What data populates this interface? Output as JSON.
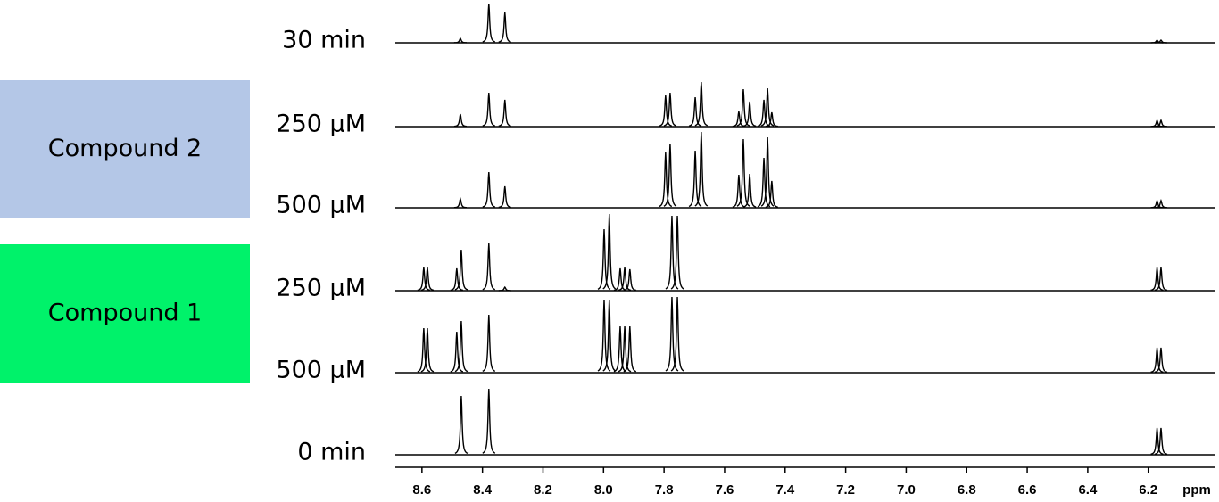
{
  "chart_data": {
    "type": "nmr-stack",
    "xlabel": "ppm",
    "xlim": [
      8.688,
      5.978
    ],
    "xticks": [
      8.6,
      8.4,
      8.2,
      {
        "value": 8,
        "label": "8.0"
      },
      7.8,
      7.6,
      7.4,
      7.2,
      {
        "value": 7,
        "label": "7.0"
      },
      6.8,
      6.6,
      6.4,
      6.2
    ],
    "groups": [
      {
        "label": "Compound 2",
        "color": "#b4c7e7"
      },
      {
        "label": "Compound 1",
        "color": "#00f26a"
      }
    ],
    "series": [
      {
        "name": "30 min",
        "color": "#000000",
        "x": [
          8.473,
          8.379,
          8.326,
          6.171,
          6.158
        ],
        "values": [
          5,
          44,
          34,
          3,
          3
        ]
      },
      {
        "name": "250 μM",
        "color": "#000000",
        "x": [
          8.473,
          8.379,
          8.326,
          7.795,
          7.78,
          7.697,
          7.677,
          7.553,
          7.538,
          7.517,
          7.47,
          7.458,
          7.444,
          6.171,
          6.158
        ],
        "values": [
          14,
          38,
          30,
          35,
          38,
          33,
          50,
          17,
          42,
          28,
          30,
          43,
          16,
          7,
          7
        ]
      },
      {
        "name": "500 μM",
        "color": "#000000",
        "x": [
          8.473,
          8.379,
          8.326,
          7.795,
          7.78,
          7.697,
          7.677,
          7.553,
          7.538,
          7.517,
          7.47,
          7.458,
          7.444,
          6.171,
          6.158
        ],
        "values": [
          10,
          40,
          24,
          62,
          72,
          64,
          85,
          37,
          77,
          38,
          56,
          79,
          30,
          8,
          8
        ]
      },
      {
        "name": "250 μM",
        "color": "#000000",
        "x": [
          8.594,
          8.582,
          8.485,
          8.47,
          8.379,
          8.326,
          7.998,
          7.981,
          7.945,
          7.93,
          7.913,
          7.774,
          7.756,
          6.171,
          6.158
        ],
        "values": [
          26,
          26,
          25,
          46,
          53,
          4,
          69,
          86,
          25,
          26,
          24,
          84,
          84,
          26,
          26
        ]
      },
      {
        "name": "500 μM",
        "color": "#000000",
        "x": [
          8.594,
          8.582,
          8.485,
          8.47,
          8.379,
          7.998,
          7.981,
          7.945,
          7.93,
          7.913,
          7.774,
          7.756,
          6.171,
          6.158
        ],
        "values": [
          50,
          50,
          46,
          58,
          65,
          82,
          82,
          52,
          52,
          52,
          85,
          85,
          28,
          28
        ]
      },
      {
        "name": "0 min",
        "color": "#000000",
        "x": [
          8.47,
          8.379,
          6.171,
          6.158
        ],
        "values": [
          66,
          74,
          30,
          30
        ]
      }
    ]
  }
}
